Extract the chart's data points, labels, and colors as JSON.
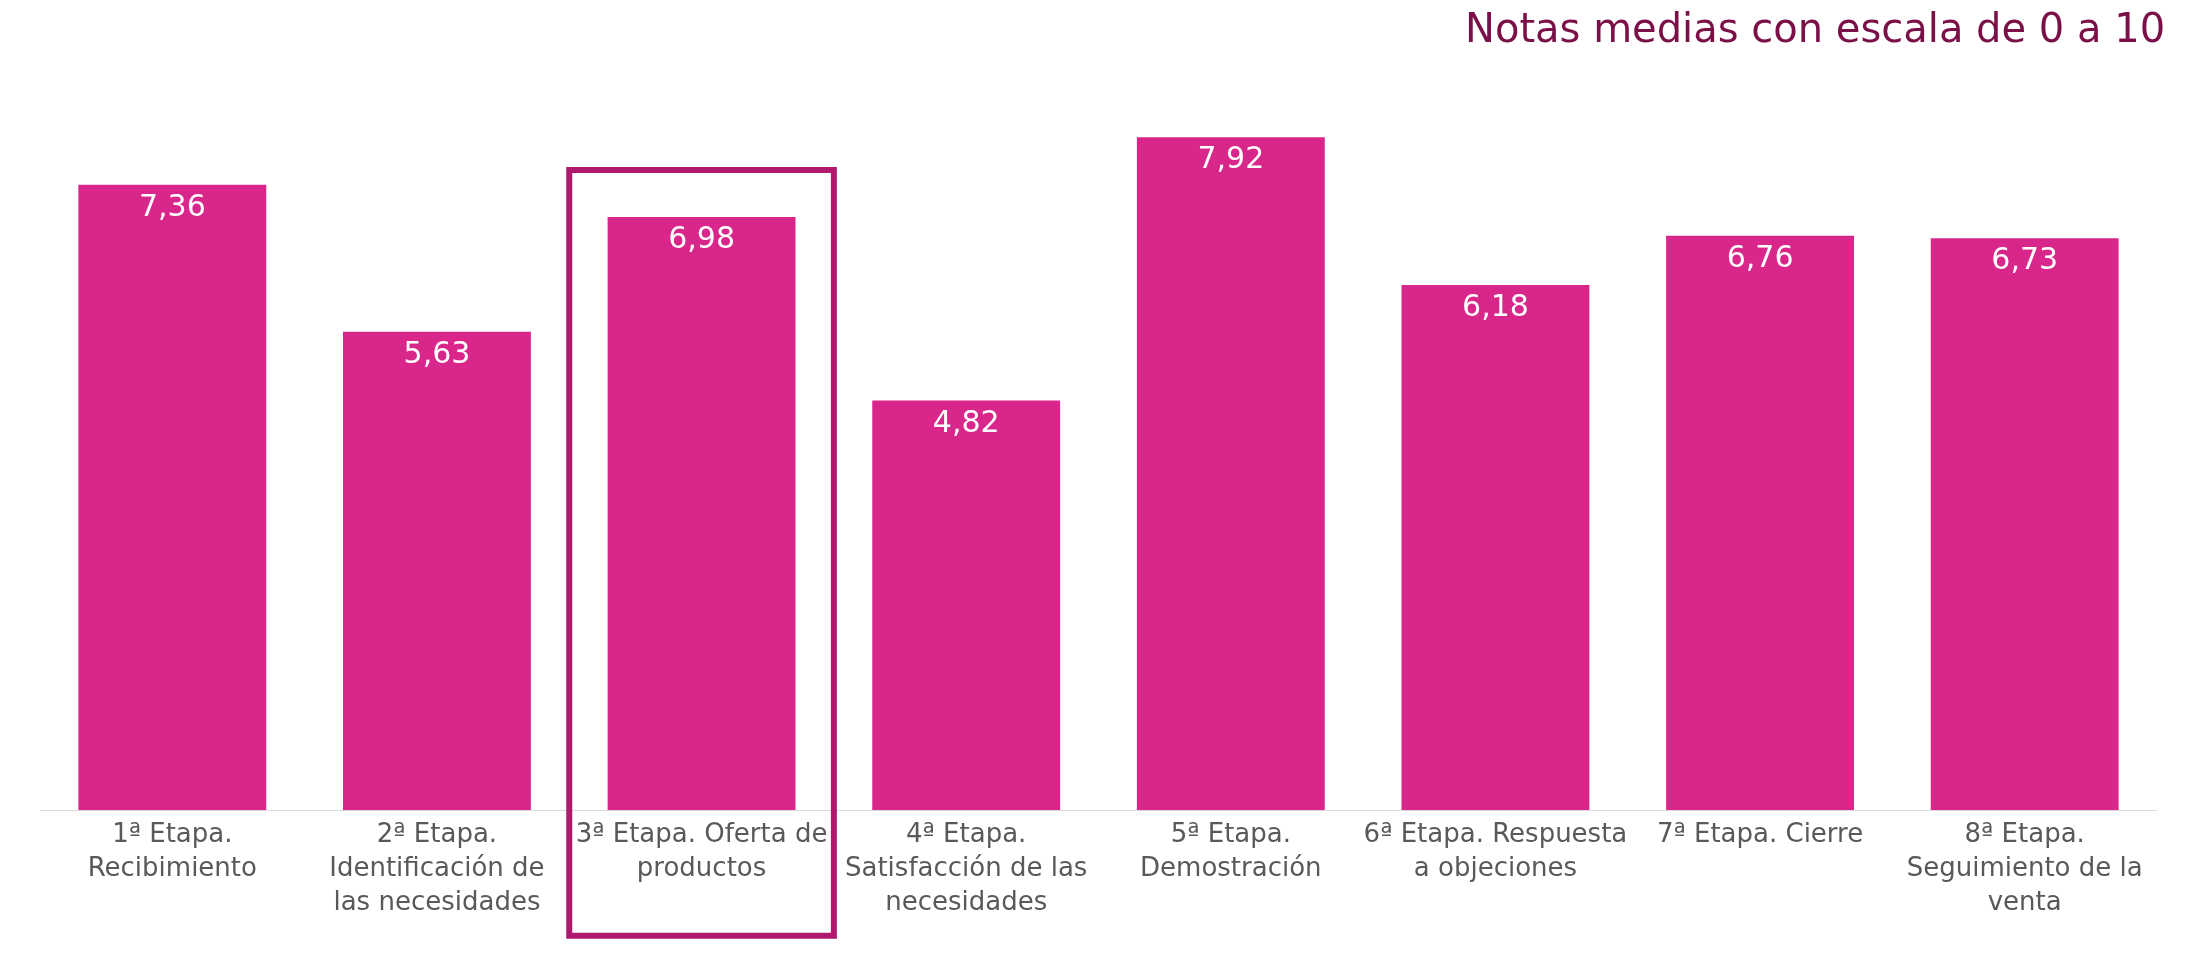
{
  "chart_data": {
    "type": "bar",
    "title": "Notas medias con escala de 0 a 10",
    "categories": [
      "1ª Etapa. Recibimiento",
      "2ª Etapa. Identificación de las necesidades",
      "3ª Etapa. Oferta de productos",
      "4ª Etapa. Satisfacción de las necesidades",
      "5ª Etapa. Demostración",
      "6ª Etapa. Respuesta a objeciones",
      "7ª Etapa. Cierre",
      "8ª Etapa. Seguimiento de la venta"
    ],
    "values": [
      7.36,
      5.63,
      6.98,
      4.82,
      7.92,
      6.18,
      6.76,
      6.73
    ],
    "value_labels": [
      "7,36",
      "5,63",
      "6,98",
      "4,82",
      "7,92",
      "6,18",
      "6,76",
      "6,73"
    ],
    "color": "#d9268a"
  }
}
